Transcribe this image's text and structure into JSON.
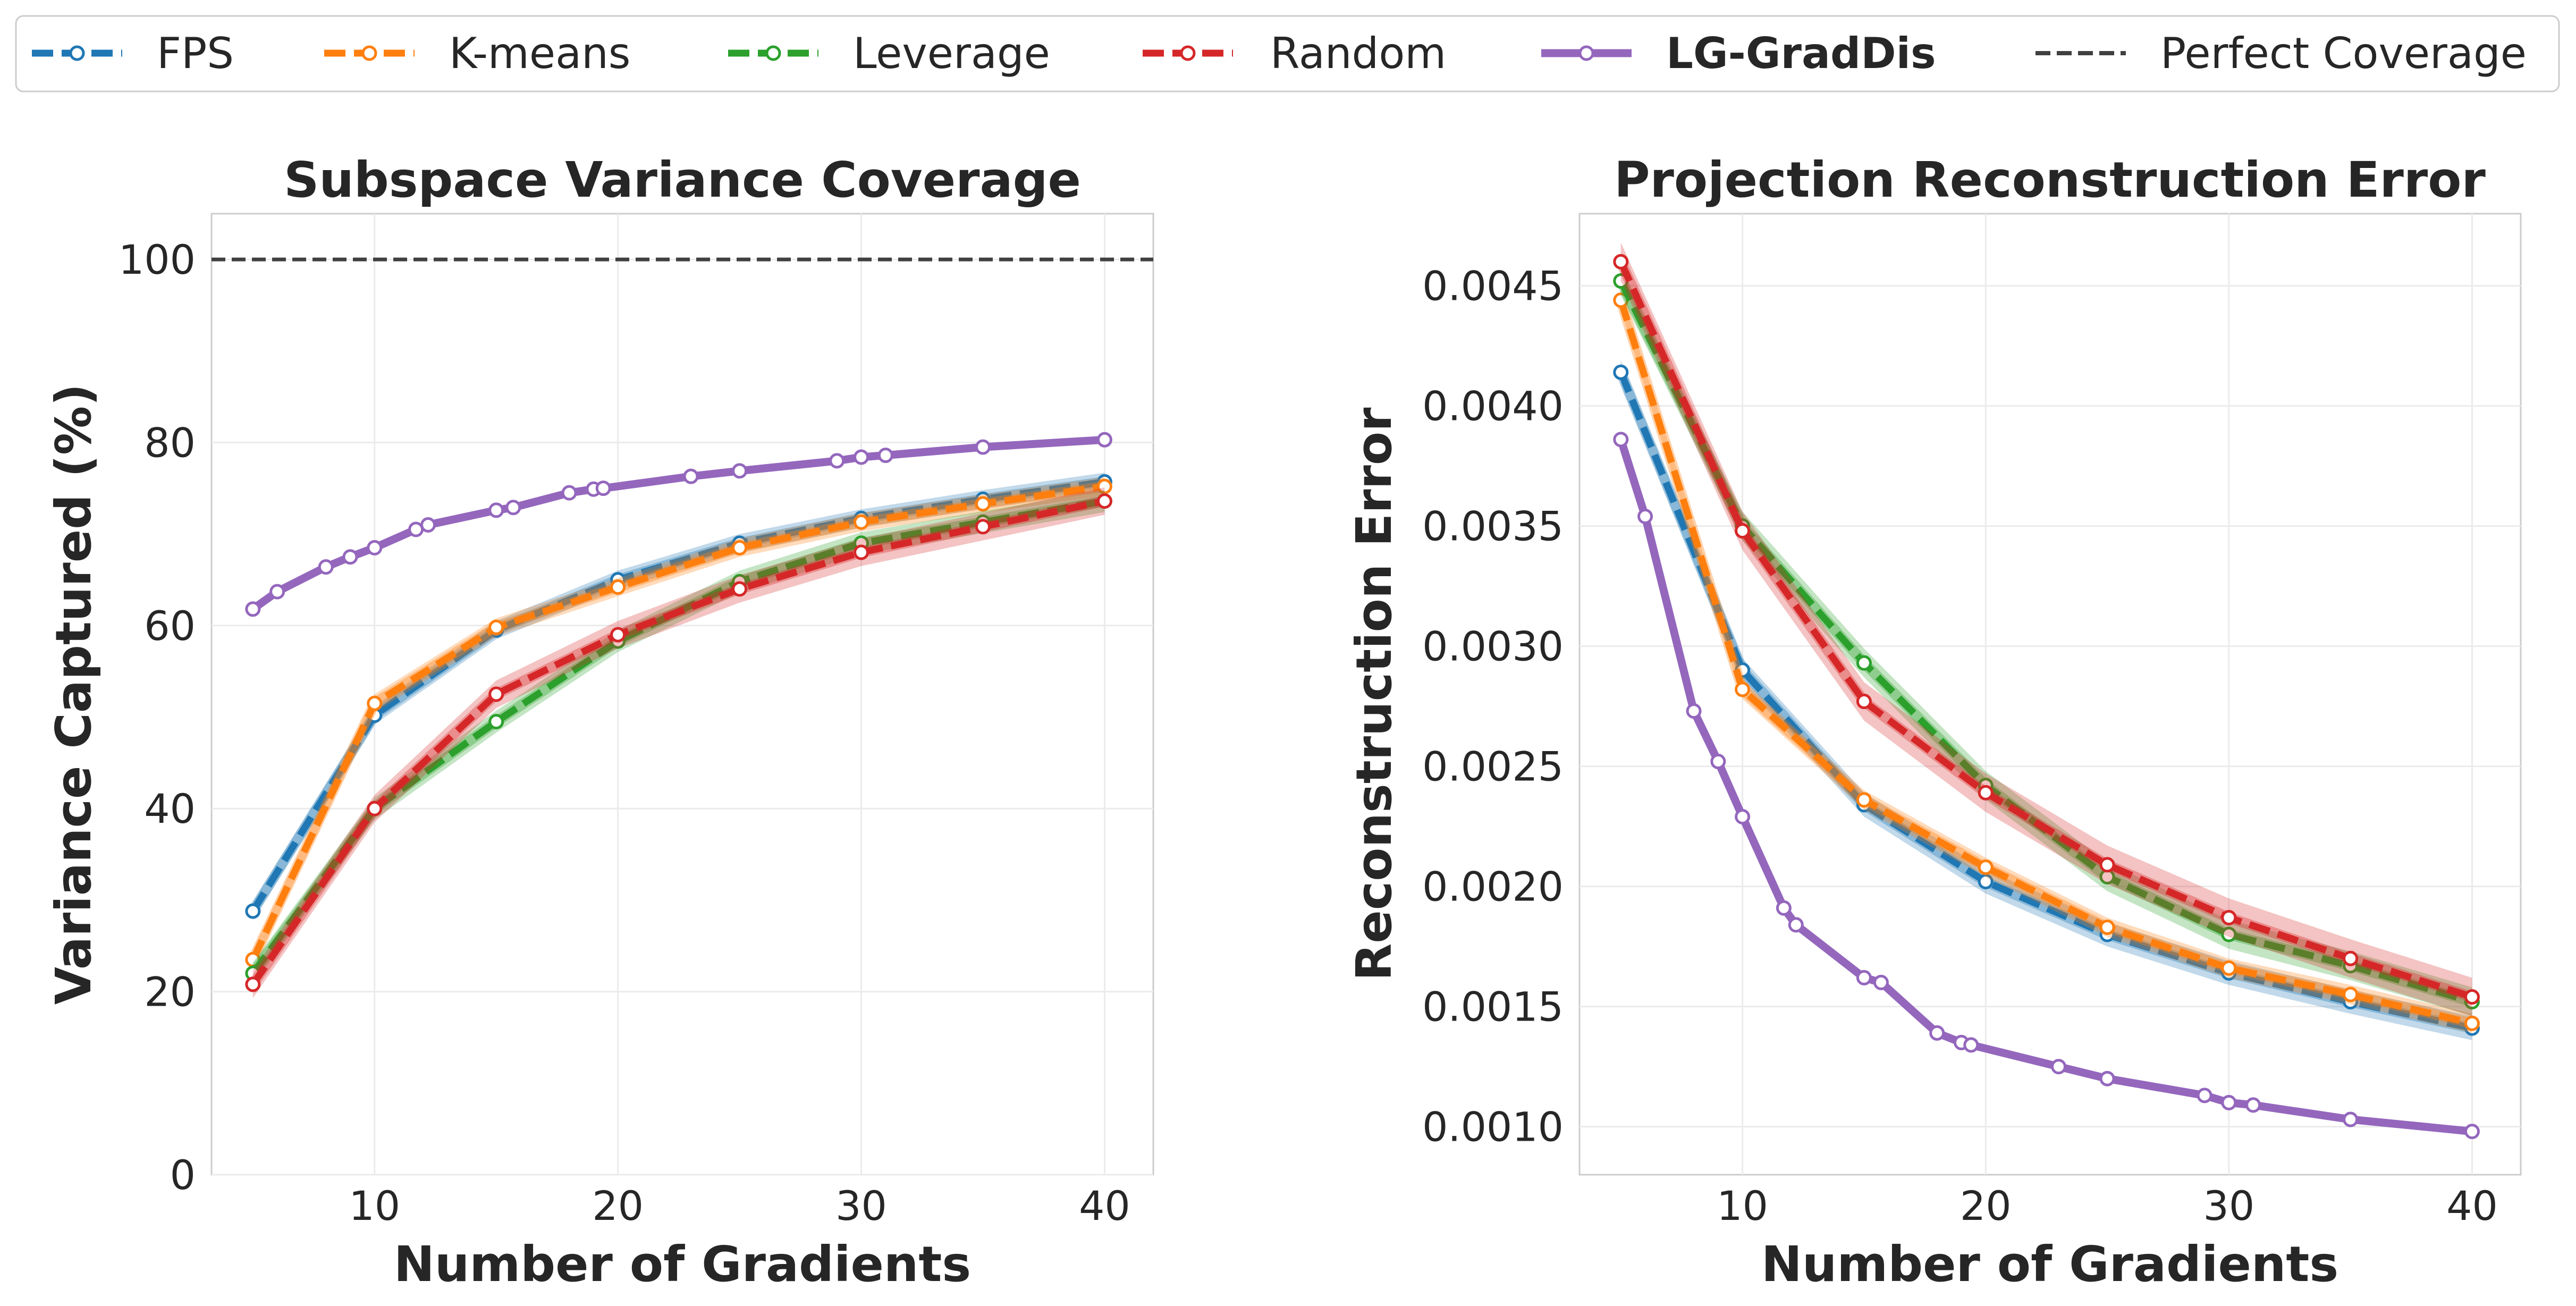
{
  "legend": {
    "entries": [
      {
        "key": "fps",
        "label": "FPS",
        "color": "#1f77b4",
        "style": "dashed",
        "marker": true,
        "bold": false
      },
      {
        "key": "kmeans",
        "label": "K-means",
        "color": "#ff7f0e",
        "style": "dashed",
        "marker": true,
        "bold": false
      },
      {
        "key": "leverage",
        "label": "Leverage",
        "color": "#2ca02c",
        "style": "dashed",
        "marker": true,
        "bold": false
      },
      {
        "key": "random",
        "label": "Random",
        "color": "#d62728",
        "style": "dashed",
        "marker": true,
        "bold": false
      },
      {
        "key": "lg",
        "label": "LG-GradDis",
        "color": "#9467bd",
        "style": "solid",
        "marker": true,
        "bold": true
      },
      {
        "key": "perfect",
        "label": "Perfect Coverage",
        "color": "#404040",
        "style": "dashed",
        "marker": false,
        "bold": false
      }
    ]
  },
  "chart_data": [
    {
      "type": "line",
      "id": "variance",
      "title": "Subspace Variance Coverage",
      "xlabel": "Number of Gradients",
      "ylabel": "Variance Captured (%)",
      "xlim": [
        3.3,
        42
      ],
      "ylim": [
        0,
        105
      ],
      "xticks": [
        10,
        20,
        30,
        40
      ],
      "yticks": [
        0,
        20,
        40,
        60,
        80,
        100
      ],
      "ytick_labels": [
        "0",
        "20",
        "40",
        "60",
        "80",
        "100"
      ],
      "grid": true,
      "reference_line": {
        "y": 100,
        "label": "Perfect Coverage"
      },
      "series": [
        {
          "key": "fps",
          "name": "FPS",
          "color": "#1f77b4",
          "dashed": true,
          "band": 1.0,
          "x": [
            5,
            10,
            15,
            20,
            25,
            30,
            35,
            40
          ],
          "y": [
            28.8,
            50.2,
            59.5,
            65.0,
            69.0,
            71.7,
            73.8,
            75.7
          ]
        },
        {
          "key": "kmeans",
          "name": "K-means",
          "color": "#ff7f0e",
          "dashed": true,
          "band": 1.0,
          "x": [
            5,
            10,
            15,
            20,
            25,
            30,
            35,
            40
          ],
          "y": [
            23.5,
            51.5,
            59.8,
            64.2,
            68.5,
            71.3,
            73.3,
            75.2
          ]
        },
        {
          "key": "leverage",
          "name": "Leverage",
          "color": "#2ca02c",
          "dashed": true,
          "band": 1.2,
          "x": [
            5,
            10,
            15,
            20,
            25,
            30,
            35,
            40
          ],
          "y": [
            22.0,
            40.0,
            49.5,
            58.3,
            64.8,
            69.0,
            71.3,
            73.6
          ]
        },
        {
          "key": "random",
          "name": "Random",
          "color": "#d62728",
          "dashed": true,
          "band": 1.5,
          "x": [
            5,
            10,
            15,
            20,
            25,
            30,
            35,
            40
          ],
          "y": [
            20.8,
            40.0,
            52.5,
            59.0,
            64.0,
            68.0,
            70.8,
            73.6
          ]
        },
        {
          "key": "lg",
          "name": "LG-GradDis",
          "color": "#9467bd",
          "dashed": false,
          "band": 0,
          "x": [
            5,
            6,
            8,
            9,
            10,
            11.7,
            12.2,
            15,
            15.7,
            18,
            19,
            19.4,
            23,
            25,
            29,
            30,
            31,
            35,
            40
          ],
          "y": [
            61.8,
            63.7,
            66.4,
            67.5,
            68.5,
            70.5,
            71.0,
            72.6,
            72.9,
            74.5,
            74.9,
            75.0,
            76.3,
            76.9,
            78.0,
            78.4,
            78.6,
            79.5,
            80.3
          ]
        }
      ]
    },
    {
      "type": "line",
      "id": "error",
      "title": "Projection Reconstruction Error",
      "xlabel": "Number of Gradients",
      "ylabel": "Reconstruction Error",
      "xlim": [
        3.3,
        42
      ],
      "ylim": [
        0.0008,
        0.0048
      ],
      "xticks": [
        10,
        20,
        30,
        40
      ],
      "yticks": [
        0.001,
        0.0015,
        0.002,
        0.0025,
        0.003,
        0.0035,
        0.004,
        0.0045
      ],
      "ytick_labels": [
        "0.0010",
        "0.0015",
        "0.0020",
        "0.0025",
        "0.0030",
        "0.0035",
        "0.0040",
        "0.0045"
      ],
      "grid": true,
      "series": [
        {
          "key": "fps",
          "name": "FPS",
          "color": "#1f77b4",
          "dashed": true,
          "band": 5e-05,
          "x": [
            5,
            10,
            15,
            20,
            25,
            30,
            35,
            40
          ],
          "y": [
            0.00414,
            0.0029,
            0.00234,
            0.00202,
            0.0018,
            0.00164,
            0.00152,
            0.00141
          ]
        },
        {
          "key": "kmeans",
          "name": "K-means",
          "color": "#ff7f0e",
          "dashed": true,
          "band": 4e-05,
          "x": [
            5,
            10,
            15,
            20,
            25,
            30,
            35,
            40
          ],
          "y": [
            0.00444,
            0.00282,
            0.00236,
            0.00208,
            0.00183,
            0.00166,
            0.00155,
            0.00143
          ]
        },
        {
          "key": "leverage",
          "name": "Leverage",
          "color": "#2ca02c",
          "dashed": true,
          "band": 6e-05,
          "x": [
            5,
            10,
            15,
            20,
            25,
            30,
            35,
            40
          ],
          "y": [
            0.00452,
            0.0035,
            0.00293,
            0.00242,
            0.00204,
            0.0018,
            0.00167,
            0.00152
          ]
        },
        {
          "key": "random",
          "name": "Random",
          "color": "#d62728",
          "dashed": true,
          "band": 8e-05,
          "x": [
            5,
            10,
            15,
            20,
            25,
            30,
            35,
            40
          ],
          "y": [
            0.0046,
            0.00348,
            0.00277,
            0.00239,
            0.00209,
            0.00187,
            0.0017,
            0.00154
          ]
        },
        {
          "key": "lg",
          "name": "LG-GradDis",
          "color": "#9467bd",
          "dashed": false,
          "band": 0,
          "x": [
            5,
            6,
            8,
            9,
            10,
            11.7,
            12.2,
            15,
            15.7,
            18,
            19,
            19.4,
            23,
            25,
            29,
            30,
            31,
            35,
            40
          ],
          "y": [
            0.00386,
            0.00354,
            0.00273,
            0.00252,
            0.00229,
            0.00191,
            0.00184,
            0.00162,
            0.0016,
            0.00139,
            0.00135,
            0.00134,
            0.00125,
            0.0012,
            0.00113,
            0.0011,
            0.00109,
            0.00103,
            0.00098
          ]
        }
      ]
    }
  ]
}
